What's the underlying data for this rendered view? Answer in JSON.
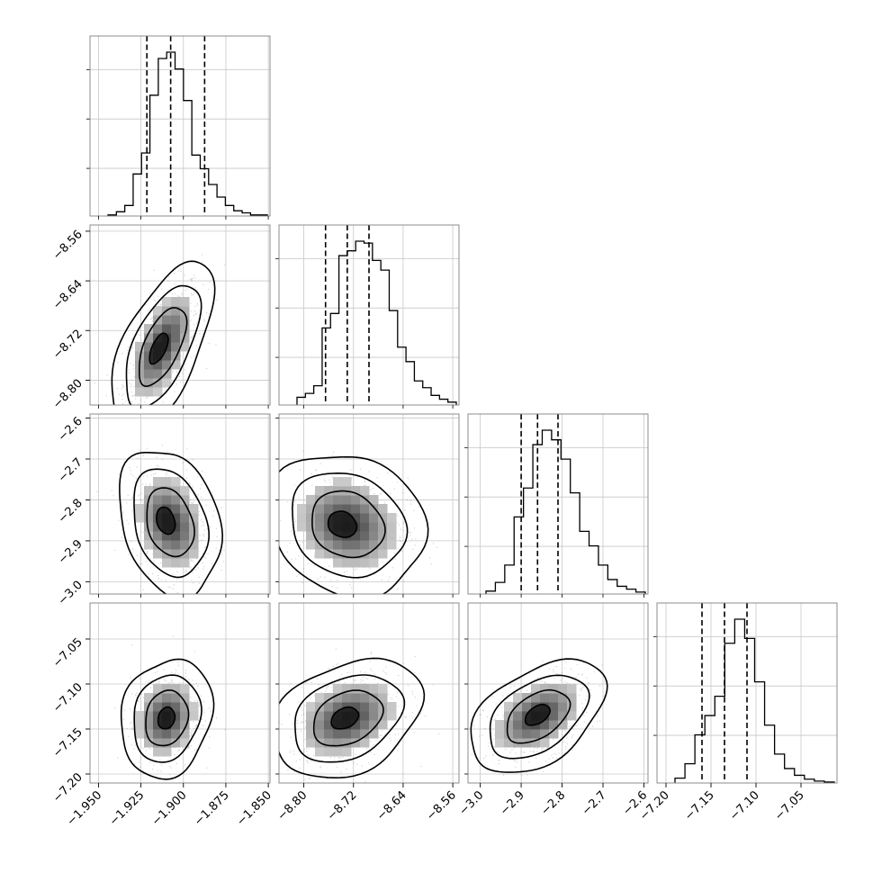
{
  "chart_data": {
    "type": "corner",
    "grid": true,
    "colors": {
      "line": "#000000",
      "grid": "#c8c8c8",
      "frame": "#808080",
      "points": "#808080"
    },
    "parameters": [
      {
        "range": [
          -1.955,
          -1.849
        ],
        "ticks": [
          -1.95,
          -1.925,
          -1.9,
          -1.875,
          -1.85
        ],
        "tick_labels": [
          "−1.950",
          "−1.925",
          "−1.900",
          "−1.875",
          "−1.850"
        ],
        "quantiles": [
          -1.9215,
          -1.9075,
          -1.8875
        ]
      },
      {
        "range": [
          -8.84,
          -8.55
        ],
        "ticks": [
          -8.8,
          -8.72,
          -8.64,
          -8.56
        ],
        "tick_labels": [
          "−8.80",
          "−8.72",
          "−8.64",
          "−8.56"
        ],
        "quantiles": [
          -8.765,
          -8.73,
          -8.695
        ]
      },
      {
        "range": [
          -3.03,
          -2.59
        ],
        "ticks": [
          -3.0,
          -2.9,
          -2.8,
          -2.7,
          -2.6
        ],
        "tick_labels": [
          "−3.0",
          "−2.9",
          "−2.8",
          "−2.7",
          "−2.6"
        ],
        "quantiles": [
          -2.9,
          -2.86,
          -2.81
        ]
      },
      {
        "range": [
          -7.21,
          -7.01
        ],
        "ticks": [
          -7.2,
          -7.15,
          -7.1,
          -7.05
        ],
        "tick_labels": [
          "−7.20",
          "−7.15",
          "−7.10",
          "−7.05"
        ],
        "quantiles": [
          -7.16,
          -7.135,
          -7.11
        ]
      }
    ],
    "histograms": [
      {
        "param": 0,
        "counts": [
          1,
          4,
          10,
          40,
          60,
          115,
          150,
          156,
          140,
          110,
          58,
          45,
          30,
          18,
          10,
          5,
          3,
          1,
          1
        ]
      },
      {
        "param": 1,
        "counts": [
          8,
          12,
          20,
          80,
          95,
          155,
          160,
          170,
          168,
          150,
          140,
          98,
          60,
          45,
          25,
          18,
          10,
          6,
          3
        ]
      },
      {
        "param": 2,
        "counts": [
          3,
          12,
          30,
          80,
          110,
          155,
          170,
          160,
          140,
          105,
          65,
          50,
          30,
          15,
          8,
          5,
          2
        ]
      },
      {
        "param": 3,
        "counts": [
          5,
          20,
          50,
          70,
          90,
          145,
          170,
          150,
          105,
          60,
          30,
          15,
          8,
          4,
          2,
          1
        ]
      }
    ],
    "pairs": [
      {
        "x": 0,
        "y": 1,
        "center": [
          -1.9125,
          -8.745
        ],
        "sigma": [
          0.01,
          0.045
        ],
        "rho": 0.6,
        "peak": [
          -1.915,
          -8.75
        ]
      },
      {
        "x": 0,
        "y": 2,
        "center": [
          -1.908,
          -2.855
        ],
        "sigma": [
          0.01,
          0.06
        ],
        "rho": -0.25,
        "peak": [
          -1.911,
          -2.85
        ]
      },
      {
        "x": 1,
        "y": 2,
        "center": [
          -8.73,
          -2.86
        ],
        "sigma": [
          0.042,
          0.058
        ],
        "rho": -0.15,
        "peak": [
          -8.74,
          -2.86
        ]
      },
      {
        "x": 0,
        "y": 3,
        "center": [
          -1.91,
          -7.138
        ],
        "sigma": [
          0.009,
          0.022
        ],
        "rho": 0.15,
        "peak": [
          -1.91,
          -7.138
        ]
      },
      {
        "x": 1,
        "y": 3,
        "center": [
          -8.73,
          -7.138
        ],
        "sigma": [
          0.04,
          0.022
        ],
        "rho": 0.3,
        "peak": [
          -8.735,
          -7.138
        ]
      },
      {
        "x": 2,
        "y": 3,
        "center": [
          -2.86,
          -7.136
        ],
        "sigma": [
          0.055,
          0.021
        ],
        "rho": 0.45,
        "peak": [
          -2.86,
          -7.134
        ]
      }
    ]
  }
}
